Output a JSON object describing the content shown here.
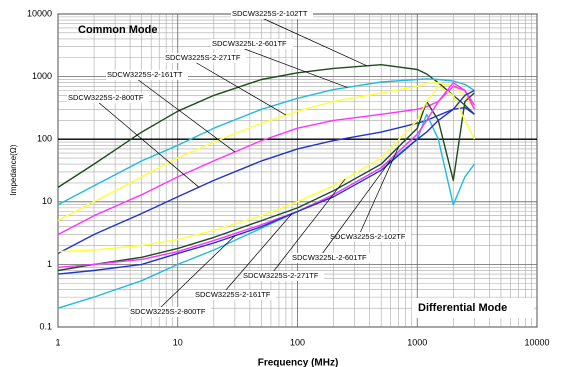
{
  "chart_data": {
    "type": "line",
    "texts": [
      "Common Mode",
      "Differential Mode"
    ],
    "xlabel": "Frequency (MHz)",
    "ylabel": "Impedance(Ω)",
    "x": [
      1,
      2,
      5,
      10,
      20,
      50,
      100,
      200,
      500,
      1000,
      1200,
      1500,
      2000,
      2500,
      3000
    ],
    "xlog": true,
    "ylog": true,
    "grid": true,
    "xlim": [
      1,
      10000
    ],
    "ylim": [
      0.1,
      10000
    ],
    "xticks": [
      1,
      10,
      100,
      1000,
      10000
    ],
    "yticks": [
      0.1,
      1,
      10,
      100,
      1000,
      10000
    ],
    "hline": 100,
    "series": [
      {
        "name": "SDCW3225S-2-102TT",
        "color": "#1d4d1d",
        "values": [
          17,
          40,
          130,
          280,
          500,
          900,
          1150,
          1350,
          1550,
          1300,
          1100,
          800,
          500,
          350,
          250
        ]
      },
      {
        "name": "SDCW3225L-2-601TF",
        "color": "#22bbdd",
        "values": [
          9,
          18,
          45,
          80,
          150,
          300,
          450,
          620,
          820,
          900,
          920,
          900,
          850,
          750,
          600
        ]
      },
      {
        "name": "SDCW3225S-2-271TF",
        "color": "#ffff33",
        "values": [
          5,
          10,
          25,
          50,
          90,
          180,
          280,
          400,
          550,
          700,
          780,
          800,
          700,
          500,
          300
        ]
      },
      {
        "name": "SDCW3225S-2-161TT",
        "color": "#ff33ff",
        "values": [
          3,
          6,
          13,
          25,
          45,
          95,
          150,
          200,
          250,
          300,
          330,
          400,
          700,
          600,
          350
        ]
      },
      {
        "name": "SDCW3225S-2-800TF",
        "color": "#2233cc",
        "values": [
          1.5,
          3,
          6.5,
          12,
          22,
          45,
          70,
          95,
          130,
          180,
          200,
          240,
          300,
          320,
          250
        ]
      },
      {
        "name": "SDCW3225S-2-102TF",
        "color": "#1d4d1d",
        "values": [
          0.8,
          1.0,
          1.3,
          1.8,
          2.7,
          5,
          8,
          15,
          40,
          150,
          400,
          200,
          22,
          400,
          550
        ]
      },
      {
        "name": "SDCW3225L-2-601TF",
        "color": "#22bbdd",
        "values": [
          0.2,
          0.3,
          0.55,
          1.0,
          1.7,
          3.8,
          7,
          13,
          35,
          100,
          250,
          100,
          9,
          25,
          40
        ]
      },
      {
        "name": "SDCW3225S-2-271TF",
        "color": "#ffff33",
        "values": [
          1.6,
          1.7,
          2.0,
          2.5,
          3.5,
          6,
          10,
          18,
          50,
          200,
          400,
          700,
          500,
          200,
          100
        ]
      },
      {
        "name": "SDCW3225S-2-161TF",
        "color": "#ff33ff",
        "values": [
          0.9,
          1.0,
          1.2,
          1.6,
          2.4,
          4.3,
          7,
          13,
          35,
          120,
          200,
          400,
          800,
          600,
          300
        ]
      },
      {
        "name": "SDCW3225S-2-800TF",
        "color": "#2233cc",
        "values": [
          0.7,
          0.8,
          1.0,
          1.5,
          2.2,
          4,
          7,
          12,
          32,
          100,
          130,
          200,
          300,
          500,
          600
        ]
      }
    ]
  }
}
